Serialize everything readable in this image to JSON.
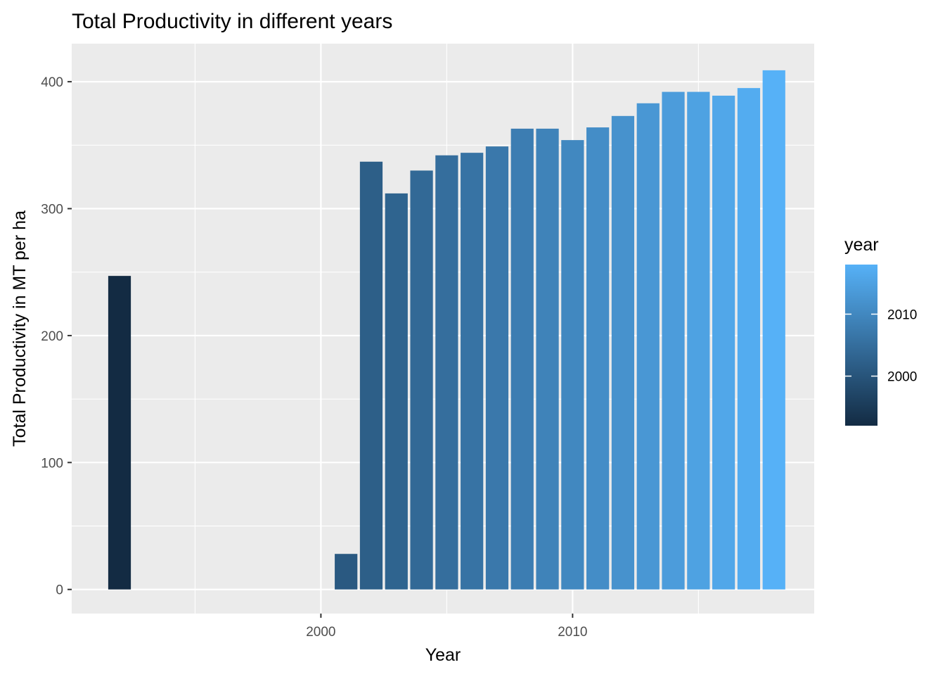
{
  "chart_data": {
    "type": "bar",
    "title": "Total Productivity in different years",
    "xlabel": "Year",
    "ylabel": "Total Productivity in MT per ha",
    "xlim": [
      1990.1,
      2019.6
    ],
    "ylim": [
      -19,
      430
    ],
    "x_ticks": [
      2000,
      2010
    ],
    "x_minor_ticks": [
      1995,
      2005,
      2015
    ],
    "y_ticks": [
      0,
      100,
      200,
      300,
      400
    ],
    "y_minor_ticks": [
      50,
      150,
      250,
      350
    ],
    "grid": true,
    "bar_width_years": 0.9,
    "x": [
      1992,
      2001,
      2002,
      2003,
      2004,
      2005,
      2006,
      2007,
      2008,
      2009,
      2010,
      2011,
      2012,
      2013,
      2014,
      2015,
      2016,
      2017,
      2018
    ],
    "values": [
      247,
      28,
      337,
      312,
      330,
      342,
      344,
      349,
      363,
      363,
      354,
      364,
      373,
      383,
      392,
      392,
      389,
      395,
      409
    ],
    "fill_mapped_to": "year",
    "legend": {
      "title": "year",
      "position": "right",
      "ticks": [
        2000,
        2010
      ],
      "color_low": "#132B43",
      "color_high": "#56B1F7"
    },
    "panel_background": "#EBEBEB",
    "grid_color": "#FFFFFF"
  }
}
